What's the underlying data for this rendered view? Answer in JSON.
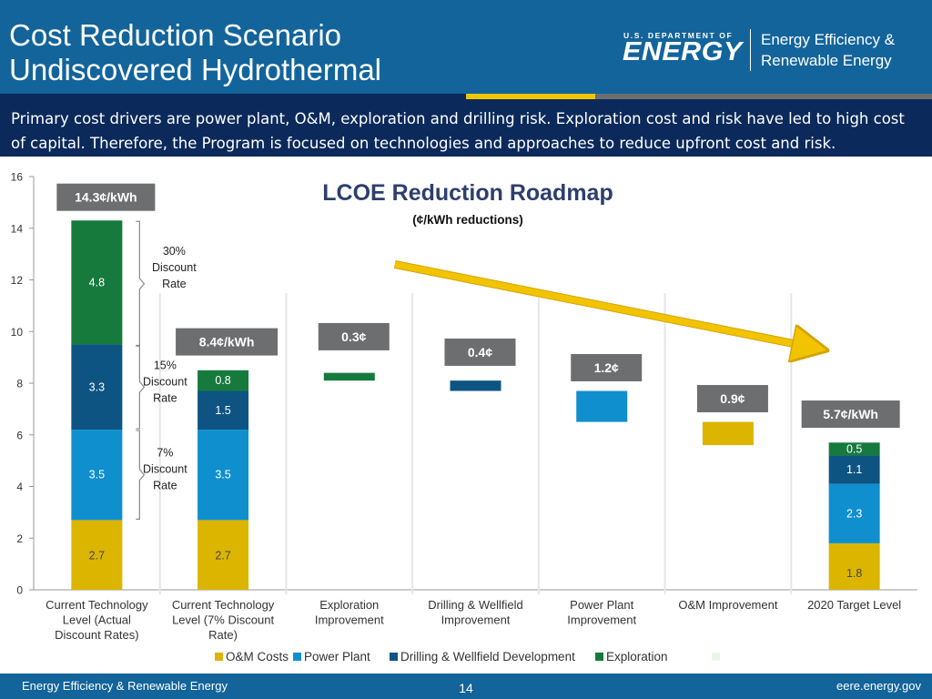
{
  "slide": {
    "title_line1": "Cost Reduction Scenario",
    "title_line2": "Undiscovered Hydrothermal",
    "intro_text": "Primary cost drivers are power plant, O&M, exploration and drilling risk. Exploration cost and risk have led to high cost of capital.  Therefore, the Program is focused on technologies and approaches to reduce upfront cost and risk.",
    "page_number": "14"
  },
  "logo": {
    "dept_small": "U.S. DEPARTMENT OF",
    "dept_big": "ENERGY",
    "office_line1": "Energy Efficiency &",
    "office_line2": "Renewable Energy"
  },
  "footer": {
    "left_text": "Energy Efficiency & Renewable Energy",
    "right_text": "eere.energy.gov"
  },
  "colors": {
    "header_blue": "#13649a",
    "navy": "#0b2a5b",
    "om": "#dcb500",
    "power_plant": "#0f8fce",
    "drilling": "#0e5483",
    "exploration": "#177a3d",
    "label_box": "#6d6e70",
    "arrow": "#f2c400",
    "stripe_gold": "#f2c400"
  },
  "chart_data": {
    "type": "bar",
    "title": "LCOE Reduction Roadmap",
    "subtitle": "(¢/kWh reductions)",
    "ylim": [
      0,
      16
    ],
    "yticks": [
      0,
      2,
      4,
      6,
      8,
      10,
      12,
      14,
      16
    ],
    "grid": false,
    "legend_position": "bottom",
    "categories": [
      "Current Technology Level (Actual Discount Rates)",
      "Current Technology Level (7% Discount Rate)",
      "Exploration Improvement",
      "Drilling & Wellfield Improvement",
      "Power Plant Improvement",
      "O&M Improvement",
      "2020 Target Level"
    ],
    "series": [
      {
        "name": "O&M Costs",
        "values": [
          2.7,
          2.7,
          null,
          null,
          null,
          null,
          1.8
        ]
      },
      {
        "name": "Power Plant",
        "values": [
          3.5,
          3.5,
          null,
          null,
          null,
          null,
          2.3
        ]
      },
      {
        "name": "Drilling & Wellfield Development",
        "values": [
          3.3,
          1.5,
          null,
          null,
          null,
          null,
          1.1
        ]
      },
      {
        "name": "Exploration",
        "values": [
          4.8,
          0.8,
          null,
          null,
          null,
          null,
          0.5
        ]
      }
    ],
    "reductions": [
      {
        "category": "Exploration Improvement",
        "series": "Exploration",
        "from": 8.4,
        "to": 8.1,
        "label": "0.3¢"
      },
      {
        "category": "Drilling & Wellfield Improvement",
        "series": "Drilling & Wellfield Development",
        "from": 8.1,
        "to": 7.7,
        "label": "0.4¢"
      },
      {
        "category": "Power Plant Improvement",
        "series": "Power Plant",
        "from": 7.7,
        "to": 6.5,
        "label": "1.2¢"
      },
      {
        "category": "O&M Improvement",
        "series": "O&M Costs",
        "from": 6.5,
        "to": 5.6,
        "label": "0.9¢"
      }
    ],
    "totals": [
      {
        "category": "Current Technology Level (Actual Discount Rates)",
        "label": "14.3¢/kWh",
        "value": 14.3
      },
      {
        "category": "Current Technology Level (7% Discount Rate)",
        "label": "8.4¢/kWh",
        "value": 8.4
      },
      {
        "category": "2020 Target Level",
        "label": "5.7¢/kWh",
        "value": 5.7
      }
    ],
    "bracket_annotations": [
      {
        "text": "30% Discount Rate",
        "from": 9.4,
        "to": 14.3
      },
      {
        "text": "15% Discount Rate",
        "from": 6.2,
        "to": 9.5
      },
      {
        "text": "7% Discount Rate",
        "from": 2.7,
        "to": 6.2
      }
    ],
    "trend_arrow": {
      "from_category": "Exploration Improvement",
      "to_category": "2020 Target Level",
      "from_y": 12.6,
      "to_y": 9.4
    }
  }
}
